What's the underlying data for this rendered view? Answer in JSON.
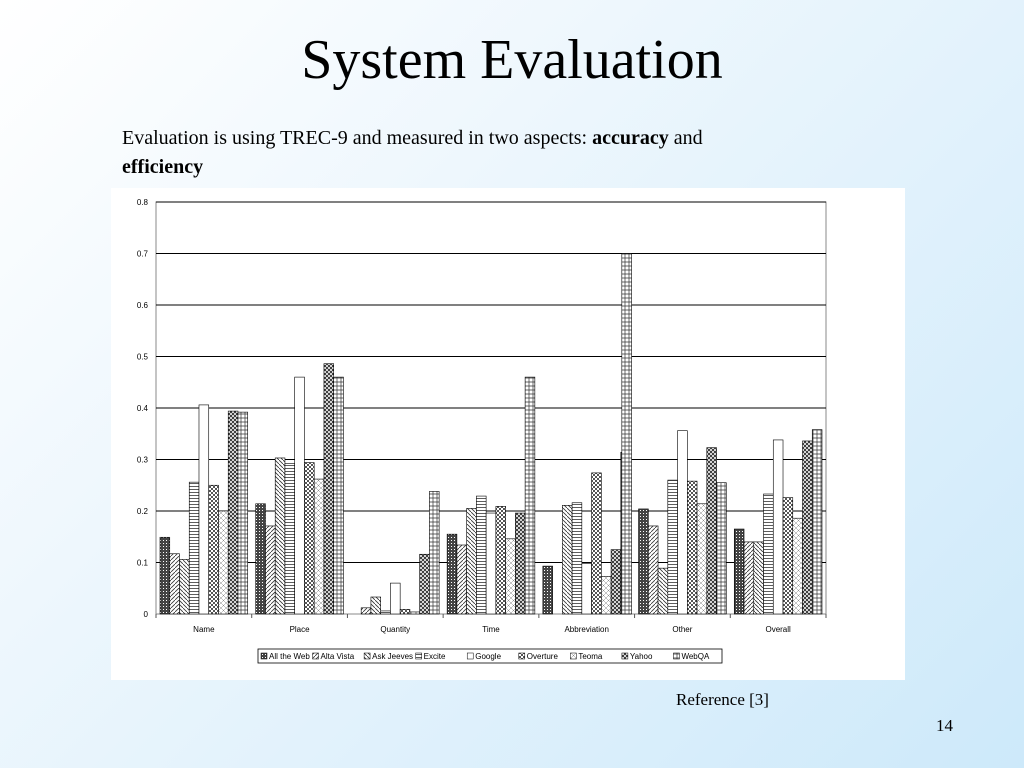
{
  "slide": {
    "title": "System Evaluation",
    "intro_text": "Evaluation is using TREC-9 and measured in two aspects:",
    "accuracy_word": "accuracy",
    "and_word": "and",
    "efficiency_word": "efficiency",
    "reference": "Reference [3]",
    "page_number": "14"
  },
  "chart_data": {
    "type": "bar",
    "title": "",
    "xlabel": "",
    "ylabel": "",
    "ylim": [
      0,
      0.8
    ],
    "yticks": [
      "0",
      "0.1",
      "0.2",
      "0.3",
      "0.4",
      "0.5",
      "0.6",
      "0.7",
      "0.8"
    ],
    "grid": true,
    "legend_position": "bottom",
    "categories": [
      "Name",
      "Place",
      "Quantity",
      "Time",
      "Abbreviation",
      "Other",
      "Overall"
    ],
    "series": [
      {
        "name": "All the Web",
        "values": [
          0.149,
          0.214,
          0.0,
          0.155,
          0.093,
          0.204,
          0.165
        ]
      },
      {
        "name": "Alta Vista",
        "values": [
          0.117,
          0.171,
          0.012,
          0.134,
          0.0,
          0.171,
          0.14
        ]
      },
      {
        "name": "Ask Jeeves",
        "values": [
          0.106,
          0.303,
          0.033,
          0.205,
          0.211,
          0.089,
          0.14
        ]
      },
      {
        "name": "Excite",
        "values": [
          0.256,
          0.292,
          0.006,
          0.229,
          0.216,
          0.26,
          0.233
        ]
      },
      {
        "name": "Google",
        "values": [
          0.406,
          0.46,
          0.06,
          0.196,
          0.098,
          0.356,
          0.338
        ]
      },
      {
        "name": "Overture",
        "values": [
          0.25,
          0.294,
          0.009,
          0.209,
          0.274,
          0.258,
          0.226
        ]
      },
      {
        "name": "Teoma",
        "values": [
          0.2,
          0.262,
          0.004,
          0.146,
          0.073,
          0.214,
          0.186
        ]
      },
      {
        "name": "Yahoo",
        "values": [
          0.394,
          0.486,
          0.116,
          0.196,
          0.125,
          0.323,
          0.336
        ]
      },
      {
        "name": "WebQA",
        "values": [
          0.392,
          0.46,
          0.238,
          0.46,
          0.314,
          0.255,
          0.358
        ]
      }
    ],
    "extra_marks": [
      {
        "category": "Abbreviation",
        "note": "additional tallest bar",
        "value": 0.7
      }
    ]
  }
}
